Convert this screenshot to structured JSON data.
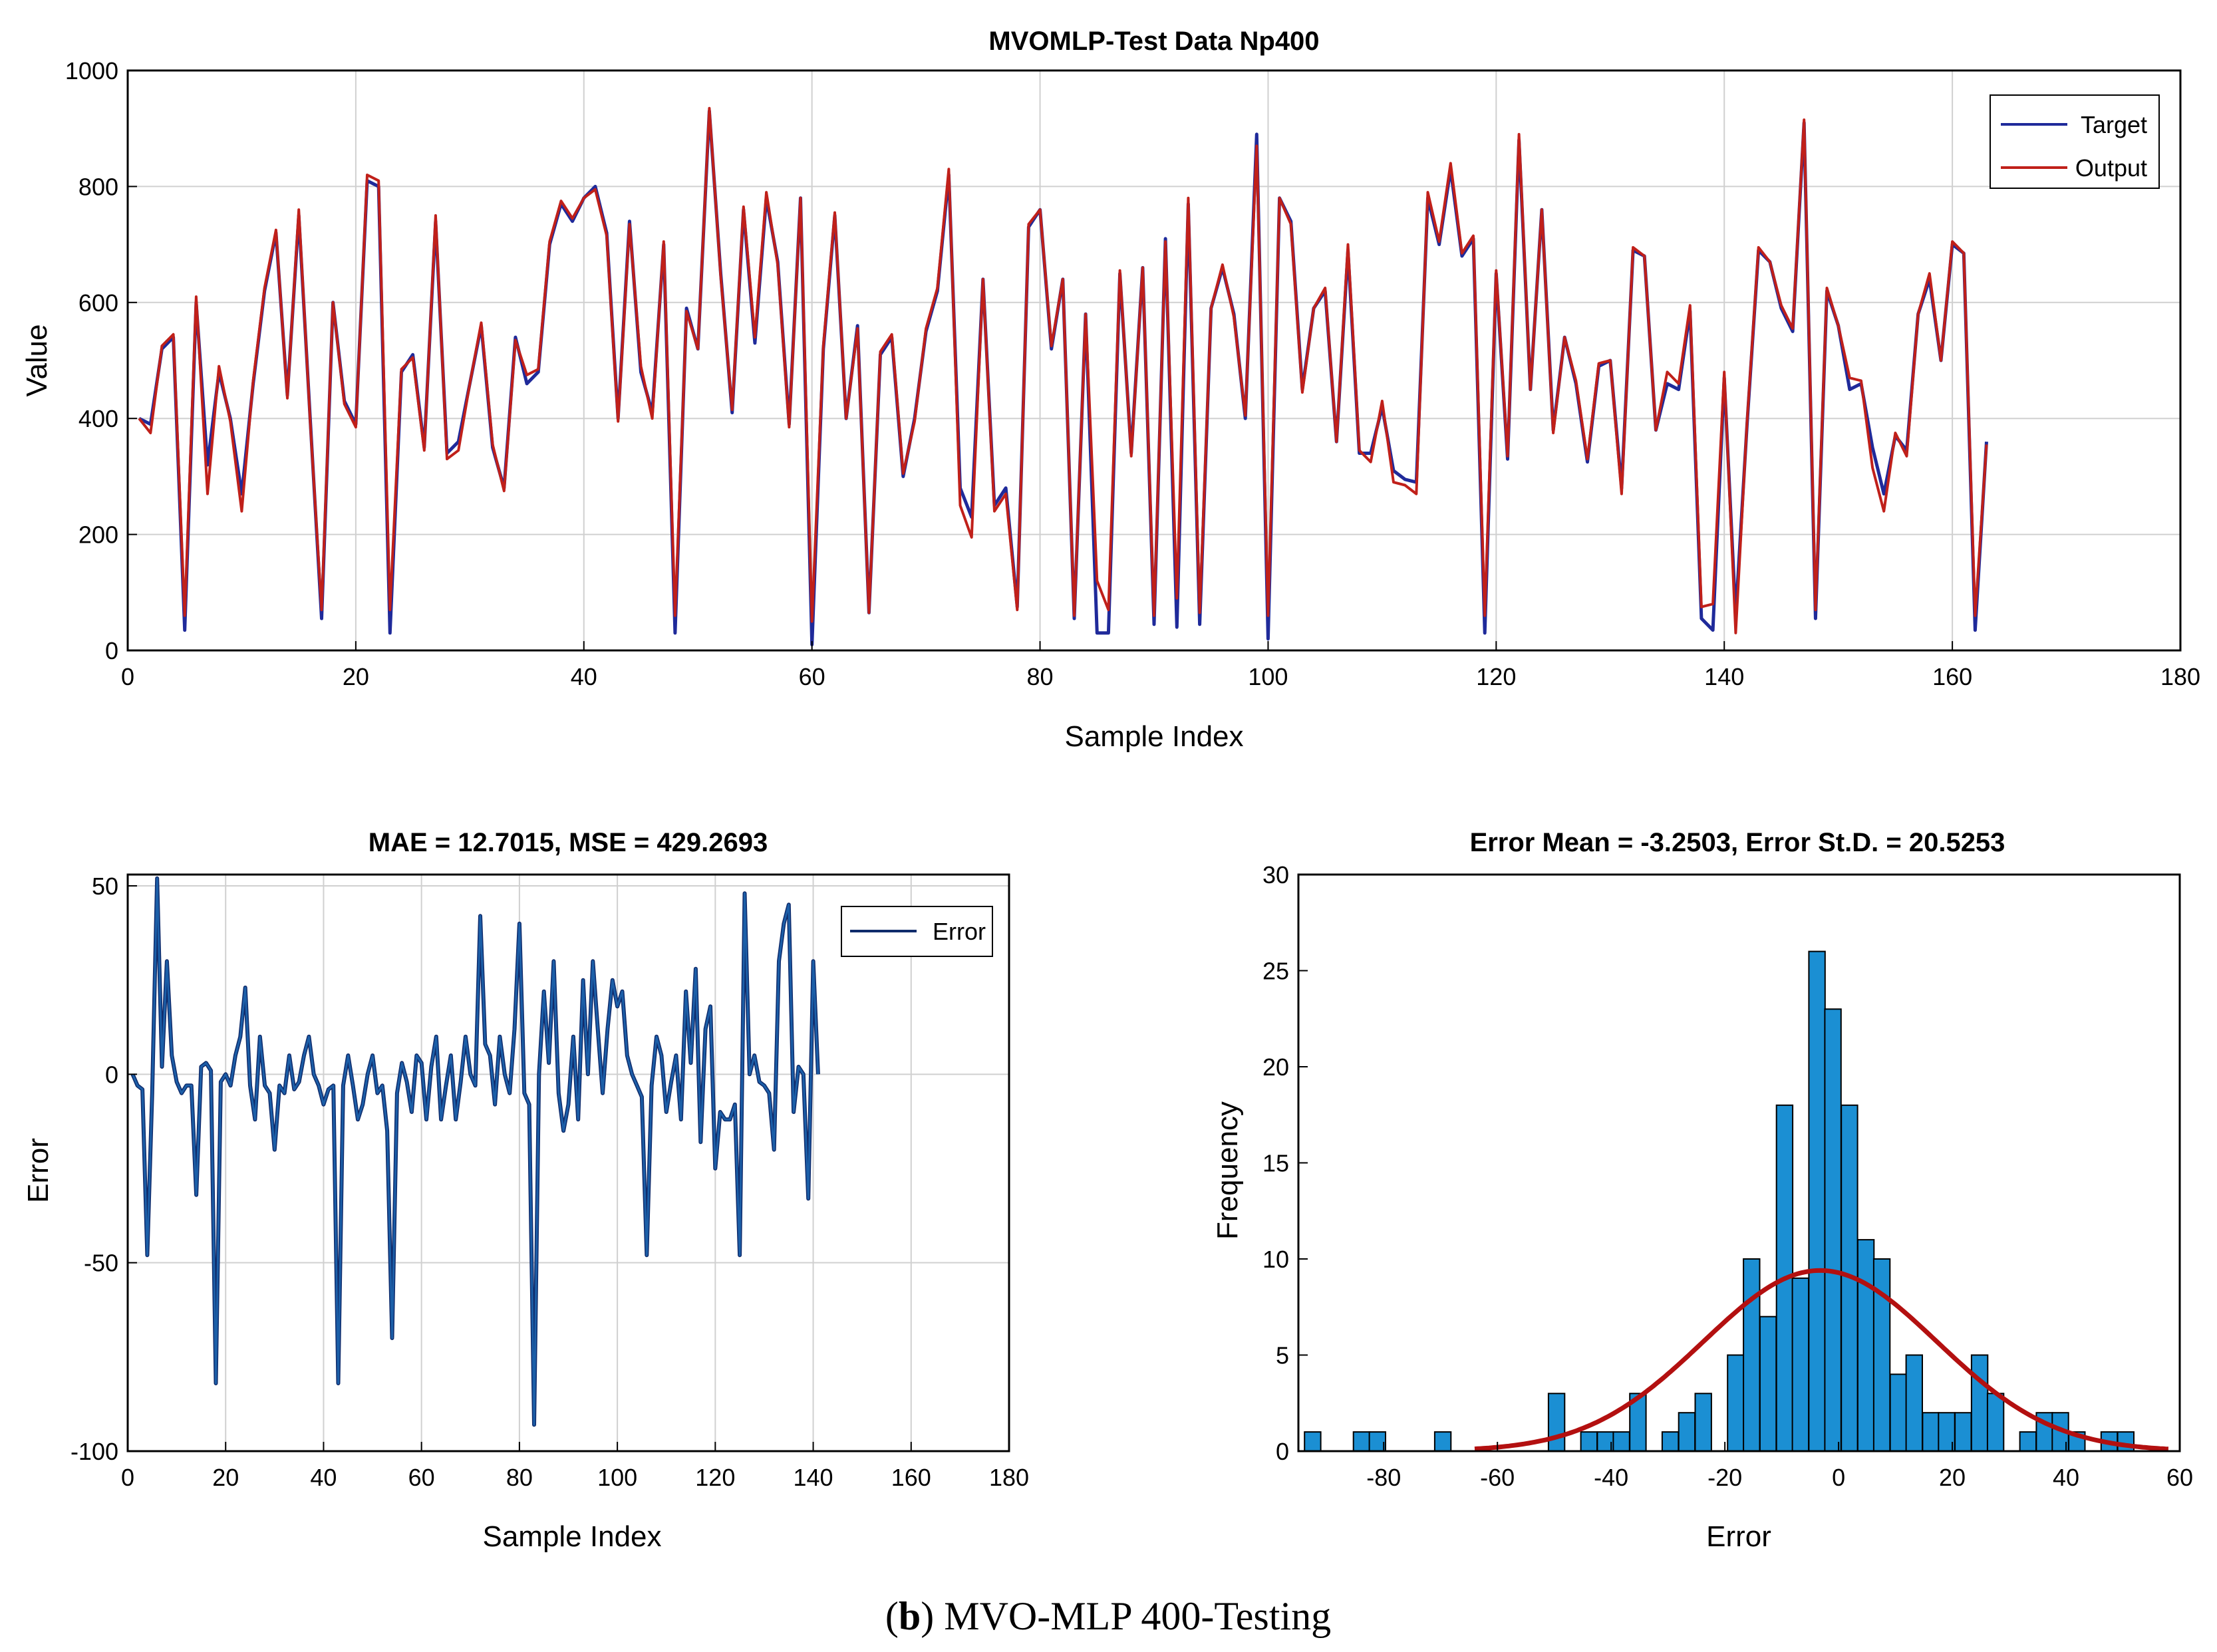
{
  "figure_caption": {
    "open": "(",
    "letter": "b",
    "rest": ") MVO-MLP 400-Testing"
  },
  "colors": {
    "target": "#1f2a9a",
    "output": "#c0201a",
    "error_line": "#1c5fa8",
    "hist_bar": "#1b8fd3",
    "normal_fit": "#b31010"
  },
  "chart_data": [
    {
      "type": "line",
      "title": "MVOMLP-Test Data Np400",
      "xlabel": "Sample Index",
      "ylabel": "Value",
      "xlim": [
        0,
        180
      ],
      "ylim": [
        0,
        1000
      ],
      "xticks": [
        0,
        20,
        40,
        60,
        80,
        100,
        120,
        140,
        160,
        180
      ],
      "yticks": [
        0,
        200,
        400,
        600,
        800,
        1000
      ],
      "legend_position": "top-right",
      "series": [
        {
          "name": "Target",
          "values": [
            400,
            390,
            520,
            540,
            35,
            600,
            320,
            480,
            400,
            270,
            460,
            620,
            720,
            440,
            750,
            400,
            55,
            600,
            430,
            390,
            810,
            800,
            30,
            480,
            510,
            350,
            740,
            340,
            360,
            460,
            560,
            350,
            280,
            540,
            460,
            480,
            700,
            770,
            740,
            780,
            800,
            720,
            400,
            740,
            480,
            410,
            700,
            30,
            590,
            520,
            930,
            650,
            410,
            760,
            530,
            780,
            670,
            390,
            780,
            10,
            520,
            750,
            400,
            560,
            65,
            510,
            540,
            300,
            400,
            550,
            620,
            820,
            280,
            230,
            640,
            250,
            280,
            75,
            730,
            760,
            520,
            640,
            55,
            580,
            30,
            30,
            650,
            340,
            660,
            45,
            710,
            40,
            770,
            45,
            590,
            660,
            580,
            400,
            890,
            20,
            780,
            740,
            450,
            590,
            620,
            360,
            690,
            340,
            340,
            420,
            310,
            295,
            290,
            780,
            700,
            830,
            680,
            710,
            30,
            650,
            330,
            880,
            450,
            760,
            380,
            540,
            460,
            325,
            490,
            500,
            280,
            690,
            680,
            380,
            460,
            450,
            585,
            55,
            35,
            470,
            60,
            390,
            690,
            670,
            590,
            550,
            910,
            55,
            620,
            560,
            450,
            460,
            350,
            270,
            370,
            345,
            580,
            640,
            500,
            700,
            685,
            35,
            360
          ]
        },
        {
          "name": "Output",
          "values": [
            400,
            375,
            525,
            545,
            60,
            610,
            270,
            490,
            395,
            240,
            465,
            625,
            725,
            435,
            760,
            395,
            70,
            600,
            425,
            385,
            820,
            810,
            70,
            485,
            505,
            345,
            750,
            330,
            345,
            460,
            565,
            355,
            275,
            535,
            475,
            485,
            705,
            775,
            745,
            780,
            795,
            715,
            395,
            735,
            490,
            400,
            705,
            60,
            585,
            520,
            935,
            645,
            415,
            765,
            540,
            790,
            665,
            385,
            780,
            50,
            525,
            755,
            400,
            555,
            65,
            515,
            545,
            305,
            395,
            555,
            625,
            830,
            250,
            195,
            640,
            240,
            270,
            70,
            735,
            760,
            525,
            640,
            60,
            580,
            120,
            70,
            655,
            335,
            660,
            60,
            705,
            90,
            780,
            65,
            590,
            665,
            575,
            405,
            870,
            60,
            780,
            735,
            445,
            590,
            625,
            360,
            700,
            345,
            325,
            430,
            290,
            285,
            270,
            790,
            705,
            840,
            685,
            715,
            60,
            655,
            335,
            890,
            450,
            760,
            375,
            540,
            465,
            330,
            495,
            500,
            270,
            695,
            680,
            380,
            480,
            460,
            595,
            75,
            80,
            480,
            30,
            395,
            695,
            670,
            595,
            555,
            915,
            70,
            625,
            560,
            470,
            465,
            315,
            240,
            375,
            335,
            580,
            650,
            500,
            705,
            685,
            60,
            355
          ]
        }
      ]
    },
    {
      "type": "line",
      "title": "MAE = 12.7015, MSE = 429.2693",
      "xlabel": "Sample Index",
      "ylabel": "Error",
      "xlim": [
        0,
        180
      ],
      "ylim": [
        -100,
        53
      ],
      "xticks": [
        0,
        20,
        40,
        60,
        80,
        100,
        120,
        140,
        160,
        180
      ],
      "yticks": [
        -100,
        -50,
        0,
        50
      ],
      "legend_position": "top-right",
      "series": [
        {
          "name": "Error",
          "values": [
            0,
            -3,
            -4,
            -48,
            -5,
            52,
            2,
            30,
            5,
            -2,
            -5,
            -3,
            -3,
            -32,
            2,
            3,
            1,
            -82,
            -2,
            0,
            -3,
            5,
            10,
            23,
            -3,
            -12,
            10,
            -3,
            -5,
            -20,
            -3,
            -5,
            5,
            -4,
            -2,
            5,
            10,
            0,
            -3,
            -8,
            -4,
            -3,
            -82,
            -3,
            5,
            -3,
            -12,
            -8,
            0,
            5,
            -5,
            -3,
            -15,
            -70,
            -5,
            3,
            -2,
            -10,
            5,
            3,
            -12,
            2,
            10,
            -12,
            -3,
            5,
            -12,
            -2,
            10,
            0,
            -3,
            42,
            8,
            5,
            -8,
            10,
            0,
            -5,
            12,
            40,
            -5,
            -8,
            -93,
            0,
            22,
            3,
            30,
            -5,
            -15,
            -8,
            10,
            -12,
            25,
            0,
            30,
            12,
            -5,
            12,
            25,
            18,
            22,
            5,
            0,
            -3,
            -6,
            -48,
            -3,
            10,
            5,
            -10,
            -2,
            5,
            -12,
            22,
            3,
            28,
            -18,
            12,
            18,
            -25,
            -10,
            -12,
            -12,
            -8,
            -48,
            48,
            0,
            5,
            -2,
            -3,
            -5,
            -20,
            30,
            40,
            45,
            -10,
            2,
            0,
            -33,
            30,
            0
          ]
        }
      ]
    },
    {
      "type": "bar",
      "title": "Error Mean = -3.2503, Error St.D. = 20.5253",
      "xlabel": "Error",
      "ylabel": "Frequency",
      "xlim": [
        -95,
        60
      ],
      "ylim": [
        0,
        30
      ],
      "xticks": [
        -80,
        -60,
        -40,
        -20,
        0,
        20,
        40,
        60
      ],
      "yticks": [
        0,
        5,
        10,
        15,
        20,
        25,
        30
      ],
      "bin_width": 2.85,
      "bins": [
        {
          "x": -92.5,
          "count": 1
        },
        {
          "x": -83.9,
          "count": 1
        },
        {
          "x": -81.1,
          "count": 1
        },
        {
          "x": -69.6,
          "count": 1
        },
        {
          "x": -49.6,
          "count": 3
        },
        {
          "x": -43.9,
          "count": 1
        },
        {
          "x": -41.0,
          "count": 1
        },
        {
          "x": -38.2,
          "count": 1
        },
        {
          "x": -35.3,
          "count": 3
        },
        {
          "x": -29.6,
          "count": 1
        },
        {
          "x": -26.7,
          "count": 2
        },
        {
          "x": -23.8,
          "count": 3
        },
        {
          "x": -18.1,
          "count": 5
        },
        {
          "x": -15.3,
          "count": 10
        },
        {
          "x": -12.4,
          "count": 7
        },
        {
          "x": -9.5,
          "count": 18
        },
        {
          "x": -6.7,
          "count": 9
        },
        {
          "x": -3.8,
          "count": 26
        },
        {
          "x": -1.0,
          "count": 23
        },
        {
          "x": 1.9,
          "count": 18
        },
        {
          "x": 4.8,
          "count": 11
        },
        {
          "x": 7.6,
          "count": 10
        },
        {
          "x": 10.5,
          "count": 4
        },
        {
          "x": 13.3,
          "count": 5
        },
        {
          "x": 16.2,
          "count": 2
        },
        {
          "x": 19.0,
          "count": 2
        },
        {
          "x": 21.9,
          "count": 2
        },
        {
          "x": 24.8,
          "count": 5
        },
        {
          "x": 27.6,
          "count": 3
        },
        {
          "x": 33.3,
          "count": 1
        },
        {
          "x": 36.2,
          "count": 2
        },
        {
          "x": 39.0,
          "count": 2
        },
        {
          "x": 41.9,
          "count": 1
        },
        {
          "x": 47.6,
          "count": 1
        },
        {
          "x": 50.5,
          "count": 1
        }
      ],
      "normal_fit": {
        "mean": -3.2503,
        "std": 20.5253,
        "peak": 9.4,
        "x_range": [
          -64,
          58
        ]
      }
    }
  ]
}
